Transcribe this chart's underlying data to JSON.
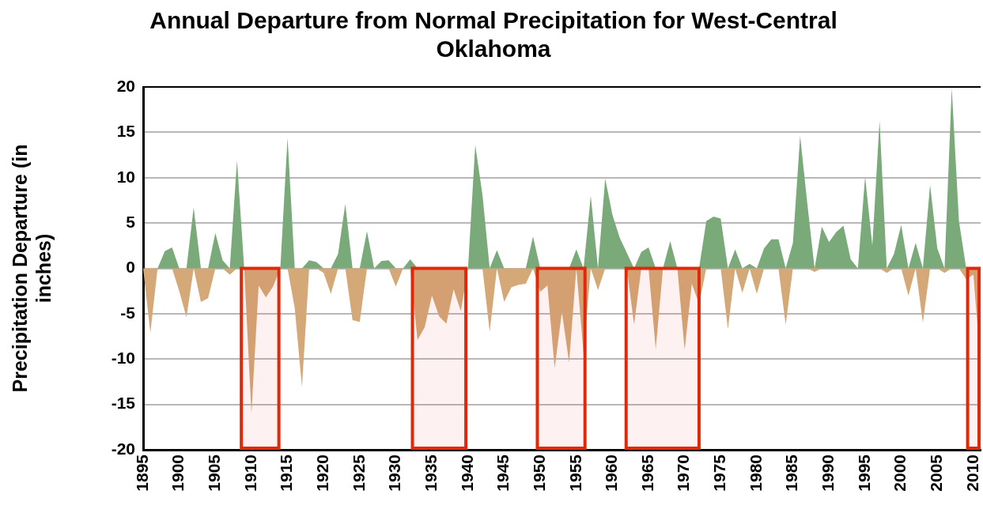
{
  "chart_data": {
    "type": "area",
    "title": "Annual Departure from Normal Precipitation for West-Central Oklahoma",
    "ylabel": "Precipitation Departure (in inches)",
    "x": [
      1895,
      1896,
      1897,
      1898,
      1899,
      1900,
      1901,
      1902,
      1903,
      1904,
      1905,
      1906,
      1907,
      1908,
      1909,
      1910,
      1911,
      1912,
      1913,
      1914,
      1915,
      1916,
      1917,
      1918,
      1919,
      1920,
      1921,
      1922,
      1923,
      1924,
      1925,
      1926,
      1927,
      1928,
      1929,
      1930,
      1931,
      1932,
      1933,
      1934,
      1935,
      1936,
      1937,
      1938,
      1939,
      1940,
      1941,
      1942,
      1943,
      1944,
      1945,
      1946,
      1947,
      1948,
      1949,
      1950,
      1951,
      1952,
      1953,
      1954,
      1955,
      1956,
      1957,
      1958,
      1959,
      1960,
      1961,
      1962,
      1963,
      1964,
      1965,
      1966,
      1967,
      1968,
      1969,
      1970,
      1971,
      1972,
      1973,
      1974,
      1975,
      1976,
      1977,
      1978,
      1979,
      1980,
      1981,
      1982,
      1983,
      1984,
      1985,
      1986,
      1987,
      1988,
      1989,
      1990,
      1991,
      1992,
      1993,
      1994,
      1995,
      1996,
      1997,
      1998,
      1999,
      2000,
      2001,
      2002,
      2003,
      2004,
      2005,
      2006,
      2007,
      2008,
      2009,
      2010,
      2011
    ],
    "series": [
      {
        "color": "#7aa97a",
        "values": [
          0,
          0,
          0,
          1.9,
          2.3,
          0,
          0,
          6.7,
          0,
          0,
          3.9,
          0.9,
          0,
          11.9,
          0,
          0,
          0,
          0,
          0,
          0,
          14.4,
          0,
          0,
          0.9,
          0.7,
          0,
          0,
          1.6,
          7.1,
          0,
          0,
          4.1,
          0,
          0.8,
          0.9,
          0,
          0,
          1.0,
          0,
          0,
          0,
          0,
          0,
          0,
          0,
          0,
          13.6,
          8.1,
          0,
          2.0,
          0,
          0,
          0,
          0,
          3.5,
          0,
          0,
          0,
          0,
          0,
          2.1,
          0,
          8.0,
          0,
          9.9,
          5.9,
          3.4,
          1.7,
          0,
          1.8,
          2.3,
          0,
          0,
          3.0,
          0,
          0,
          0,
          0,
          5.2,
          5.7,
          5.5,
          0,
          2.1,
          0,
          0.5,
          0,
          2.2,
          3.2,
          3.2,
          0,
          2.8,
          14.6,
          7.1,
          0,
          4.6,
          2.9,
          4.0,
          4.7,
          1.0,
          0,
          10.1,
          2.5,
          16.3,
          0,
          1.6,
          4.8,
          0,
          2.8,
          0,
          9.2,
          2.2,
          0,
          19.9,
          5.2,
          0,
          0,
          0
        ]
      },
      {
        "color": "#d4a877",
        "values": [
          0,
          -7.1,
          0,
          0,
          0,
          -2.5,
          -5.4,
          0,
          -3.7,
          -3.3,
          0,
          0,
          -0.7,
          0,
          0,
          -16.0,
          -1.9,
          -3.2,
          -2.0,
          0,
          0,
          -4.4,
          -13.1,
          0,
          0,
          -0.5,
          -2.8,
          0,
          0,
          -5.7,
          -5.9,
          0,
          0,
          0,
          0,
          -2.0,
          0,
          0,
          -7.9,
          -6.5,
          -3.0,
          -5.3,
          -6.1,
          -2.3,
          -4.7,
          0,
          0,
          0,
          -7.0,
          0,
          -3.7,
          -2.1,
          -1.8,
          -1.7,
          0,
          -2.6,
          -1.9,
          -11.0,
          -4.8,
          -10.4,
          0,
          -9.4,
          0,
          -2.4,
          0,
          0,
          0,
          0,
          -6.2,
          0,
          0,
          -8.9,
          0,
          0,
          0,
          -9.0,
          -1.7,
          -3.9,
          0,
          0,
          0,
          -6.7,
          0,
          -2.7,
          0,
          -2.8,
          0,
          0,
          0,
          -6.2,
          0,
          0,
          0,
          -0.4,
          0,
          0,
          0,
          0,
          0,
          0,
          0,
          0,
          0,
          -0.5,
          0,
          0,
          -3.0,
          0,
          -6.0,
          0,
          0,
          -0.5,
          0,
          0,
          -1.2,
          -0.7,
          -10.6
        ]
      }
    ],
    "xlim": [
      1895,
      2011
    ],
    "xticks": [
      1895,
      1900,
      1905,
      1910,
      1915,
      1920,
      1925,
      1930,
      1935,
      1940,
      1945,
      1950,
      1955,
      1960,
      1965,
      1970,
      1975,
      1980,
      1985,
      1990,
      1995,
      2000,
      2005,
      2010
    ],
    "ylim": [
      -20,
      20
    ],
    "yticks": [
      -20,
      -15,
      -10,
      -5,
      0,
      5,
      10,
      15,
      20
    ],
    "grid": "y",
    "bands": [
      {
        "axis": "x",
        "from": 1908.6,
        "to": 1913.8,
        "color": "#e0280a"
      },
      {
        "axis": "x",
        "from": 1932.3,
        "to": 1939.7,
        "color": "#e0280a"
      },
      {
        "axis": "x",
        "from": 1949.6,
        "to": 1956.2,
        "color": "#e0280a"
      },
      {
        "axis": "x",
        "from": 1961.9,
        "to": 1972.0,
        "color": "#e0280a"
      },
      {
        "axis": "x",
        "from": 2009.2,
        "to": 2011,
        "color": "#e0280a"
      }
    ]
  }
}
